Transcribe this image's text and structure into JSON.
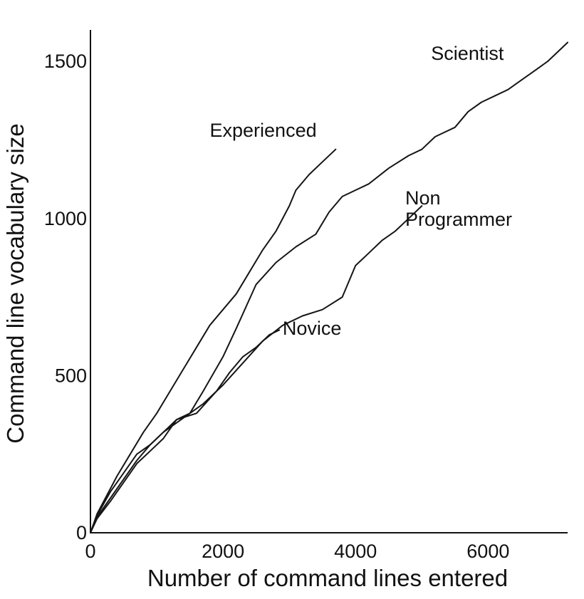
{
  "chart_data": {
    "type": "line",
    "title": "",
    "xlabel": "Number of command lines entered",
    "ylabel": "Command line vocabulary size",
    "xlim": [
      0,
      7200
    ],
    "ylim": [
      0,
      1600
    ],
    "x_ticks": [
      {
        "value": 0,
        "label": "0"
      },
      {
        "value": 2000,
        "label": "2000"
      },
      {
        "value": 4000,
        "label": "4000"
      },
      {
        "value": 6000,
        "label": "6000"
      }
    ],
    "y_ticks": [
      {
        "value": 0,
        "label": "0"
      },
      {
        "value": 500,
        "label": "500"
      },
      {
        "value": 1000,
        "label": "1000"
      },
      {
        "value": 1500,
        "label": "1500"
      }
    ],
    "grid": false,
    "legend": "none",
    "series": [
      {
        "label": "Experienced",
        "label_lines": [
          "Experienced"
        ],
        "label_anchor": {
          "x": 1800,
          "y": 1260
        },
        "points": [
          [
            0,
            0
          ],
          [
            100,
            60
          ],
          [
            250,
            120
          ],
          [
            400,
            180
          ],
          [
            600,
            250
          ],
          [
            800,
            320
          ],
          [
            1000,
            380
          ],
          [
            1200,
            450
          ],
          [
            1400,
            520
          ],
          [
            1600,
            590
          ],
          [
            1800,
            660
          ],
          [
            2000,
            710
          ],
          [
            2200,
            760
          ],
          [
            2400,
            830
          ],
          [
            2600,
            900
          ],
          [
            2800,
            960
          ],
          [
            3000,
            1040
          ],
          [
            3100,
            1090
          ],
          [
            3300,
            1140
          ],
          [
            3500,
            1180
          ],
          [
            3700,
            1220
          ]
        ]
      },
      {
        "label": "Scientist",
        "label_lines": [
          "Scientist"
        ],
        "label_anchor": {
          "x": 5140,
          "y": 1505
        },
        "points": [
          [
            0,
            0
          ],
          [
            100,
            55
          ],
          [
            300,
            130
          ],
          [
            500,
            190
          ],
          [
            700,
            250
          ],
          [
            900,
            280
          ],
          [
            1100,
            320
          ],
          [
            1300,
            350
          ],
          [
            1500,
            380
          ],
          [
            1700,
            450
          ],
          [
            2000,
            560
          ],
          [
            2200,
            650
          ],
          [
            2500,
            790
          ],
          [
            2800,
            860
          ],
          [
            3100,
            910
          ],
          [
            3400,
            950
          ],
          [
            3600,
            1020
          ],
          [
            3800,
            1070
          ],
          [
            4000,
            1090
          ],
          [
            4200,
            1110
          ],
          [
            4500,
            1160
          ],
          [
            4800,
            1200
          ],
          [
            5000,
            1220
          ],
          [
            5200,
            1260
          ],
          [
            5500,
            1290
          ],
          [
            5700,
            1340
          ],
          [
            5900,
            1370
          ],
          [
            6100,
            1390
          ],
          [
            6300,
            1410
          ],
          [
            6500,
            1440
          ],
          [
            6700,
            1470
          ],
          [
            6900,
            1500
          ],
          [
            7100,
            1540
          ],
          [
            7200,
            1560
          ]
        ]
      },
      {
        "label": "Non Programmer",
        "label_lines": [
          "Non",
          "Programmer"
        ],
        "label_anchor": {
          "x": 4750,
          "y": 1045
        },
        "points": [
          [
            0,
            0
          ],
          [
            100,
            50
          ],
          [
            300,
            110
          ],
          [
            500,
            170
          ],
          [
            700,
            230
          ],
          [
            900,
            280
          ],
          [
            1100,
            320
          ],
          [
            1300,
            360
          ],
          [
            1500,
            380
          ],
          [
            1700,
            410
          ],
          [
            2000,
            470
          ],
          [
            2300,
            540
          ],
          [
            2600,
            610
          ],
          [
            2900,
            660
          ],
          [
            3200,
            690
          ],
          [
            3500,
            710
          ],
          [
            3800,
            750
          ],
          [
            4000,
            850
          ],
          [
            4200,
            890
          ],
          [
            4400,
            930
          ],
          [
            4600,
            960
          ],
          [
            4800,
            1000
          ],
          [
            5000,
            1040
          ]
        ]
      },
      {
        "label": "Novice",
        "label_lines": [
          "Novice"
        ],
        "label_anchor": {
          "x": 2900,
          "y": 630
        },
        "points": [
          [
            0,
            0
          ],
          [
            100,
            45
          ],
          [
            300,
            100
          ],
          [
            500,
            160
          ],
          [
            700,
            220
          ],
          [
            900,
            260
          ],
          [
            1100,
            300
          ],
          [
            1300,
            360
          ],
          [
            1600,
            380
          ],
          [
            1900,
            450
          ],
          [
            2100,
            510
          ],
          [
            2300,
            560
          ],
          [
            2500,
            590
          ],
          [
            2700,
            630
          ],
          [
            2850,
            645
          ]
        ]
      }
    ]
  }
}
